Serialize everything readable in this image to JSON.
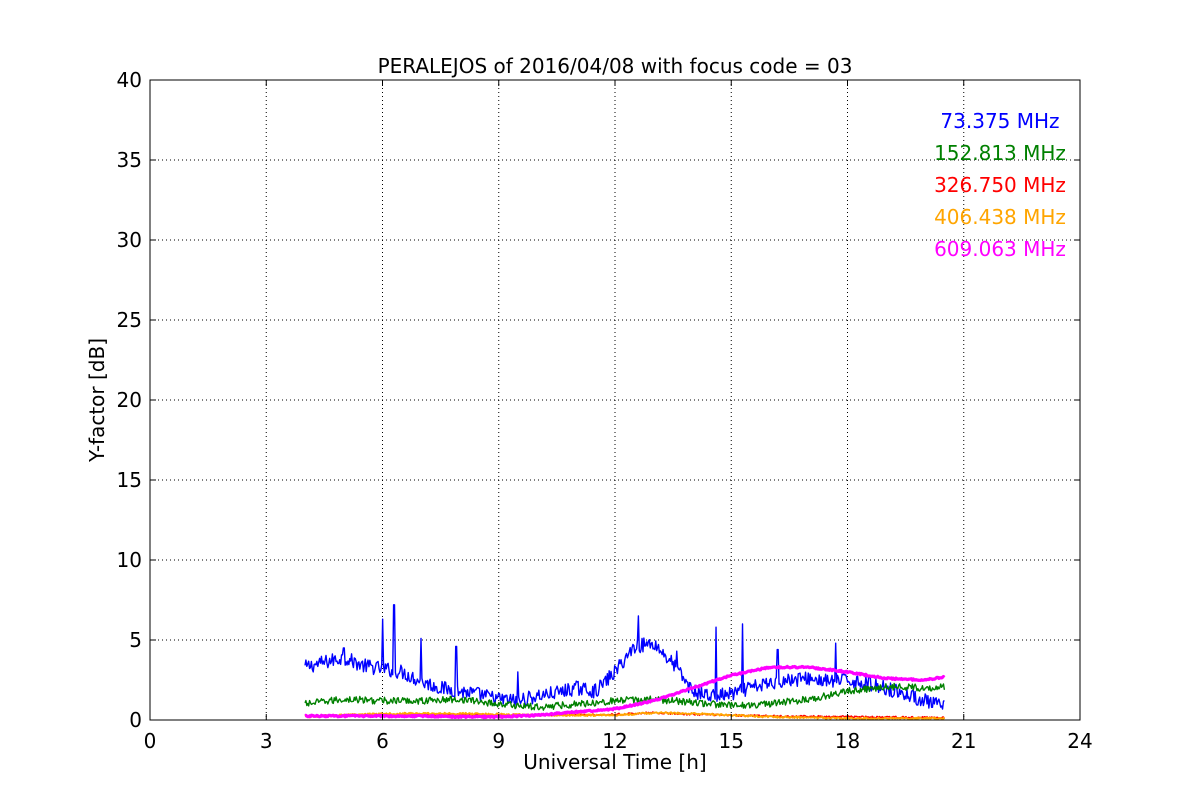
{
  "chart_data": {
    "type": "line",
    "title": "PERALEJOS of 2016/04/08 with focus code = 03",
    "xlabel": "Universal Time [h]",
    "ylabel": "Y-factor [dB]",
    "xlim": [
      0,
      24
    ],
    "ylim": [
      0,
      40
    ],
    "xticks": [
      0,
      3,
      6,
      9,
      12,
      15,
      18,
      21,
      24
    ],
    "yticks": [
      0,
      5,
      10,
      15,
      20,
      25,
      30,
      35,
      40
    ],
    "grid": true,
    "legend_position": "top-right",
    "series": [
      {
        "name": "73.375 MHz",
        "color": "#0000ff",
        "x": [
          4.0,
          4.5,
          5.0,
          5.5,
          6.0,
          6.5,
          7.0,
          7.5,
          8.0,
          8.5,
          9.0,
          9.5,
          10.0,
          10.5,
          11.0,
          11.5,
          12.0,
          12.5,
          13.0,
          13.5,
          14.0,
          14.5,
          15.0,
          15.5,
          16.0,
          16.5,
          17.0,
          17.5,
          18.0,
          18.5,
          19.0,
          19.5,
          20.0,
          20.5
        ],
        "y": [
          3.3,
          3.6,
          3.9,
          3.4,
          3.2,
          3.0,
          2.4,
          2.0,
          1.8,
          1.6,
          1.3,
          1.2,
          1.5,
          1.7,
          2.0,
          1.8,
          3.0,
          4.6,
          4.8,
          3.5,
          1.8,
          1.5,
          1.6,
          2.0,
          2.3,
          2.5,
          2.6,
          2.4,
          2.5,
          2.3,
          2.0,
          1.6,
          1.2,
          0.8
        ],
        "spikes": [
          [
            5.0,
            4.5
          ],
          [
            6.0,
            6.3
          ],
          [
            6.3,
            7.2
          ],
          [
            7.0,
            5.1
          ],
          [
            7.9,
            4.6
          ],
          [
            9.5,
            3.0
          ],
          [
            12.6,
            6.5
          ],
          [
            13.6,
            4.3
          ],
          [
            14.6,
            5.8
          ],
          [
            15.3,
            6.0
          ],
          [
            16.2,
            4.4
          ],
          [
            17.7,
            4.8
          ]
        ]
      },
      {
        "name": "152.813 MHz",
        "color": "#008000",
        "x": [
          4.0,
          5.0,
          6.0,
          7.0,
          8.0,
          9.0,
          10.0,
          11.0,
          12.0,
          13.0,
          14.0,
          15.0,
          16.0,
          17.0,
          18.0,
          19.0,
          20.0,
          20.5
        ],
        "y": [
          1.0,
          1.3,
          1.2,
          1.2,
          1.3,
          1.0,
          0.8,
          1.0,
          1.2,
          1.3,
          1.1,
          0.9,
          1.0,
          1.3,
          1.8,
          2.1,
          2.0,
          2.1
        ]
      },
      {
        "name": "326.750 MHz",
        "color": "#ff0000",
        "x": [
          4.0,
          6.0,
          8.0,
          10.0,
          12.0,
          13.0,
          14.0,
          16.0,
          18.0,
          20.0,
          20.5
        ],
        "y": [
          0.25,
          0.3,
          0.35,
          0.3,
          0.35,
          0.45,
          0.35,
          0.25,
          0.2,
          0.15,
          0.15
        ]
      },
      {
        "name": "406.438 MHz",
        "color": "#ffa500",
        "x": [
          4.0,
          6.0,
          8.0,
          10.0,
          12.0,
          13.0,
          14.0,
          16.0,
          18.0,
          20.0,
          20.5
        ],
        "y": [
          0.2,
          0.4,
          0.4,
          0.3,
          0.3,
          0.45,
          0.4,
          0.2,
          0.1,
          0.1,
          0.1
        ]
      },
      {
        "name": "609.063 MHz",
        "color": "#ff00ff",
        "x": [
          4.0,
          5.0,
          6.0,
          7.0,
          8.0,
          9.0,
          10.0,
          11.0,
          12.0,
          13.0,
          14.0,
          15.0,
          16.0,
          17.0,
          18.0,
          19.0,
          20.0,
          20.5
        ],
        "y": [
          0.25,
          0.25,
          0.25,
          0.25,
          0.2,
          0.2,
          0.3,
          0.5,
          0.7,
          1.2,
          2.0,
          2.8,
          3.3,
          3.3,
          3.0,
          2.6,
          2.5,
          2.7
        ]
      }
    ]
  }
}
